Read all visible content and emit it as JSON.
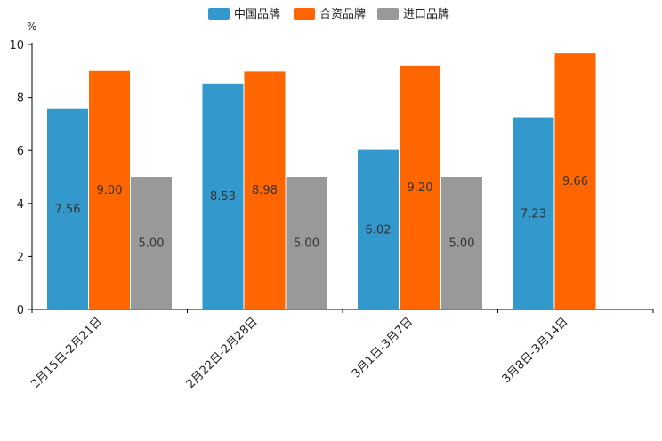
{
  "chart_data": {
    "type": "bar",
    "title": "",
    "unit": "%",
    "xlabel": "",
    "ylabel": "",
    "ylim": [
      0,
      10
    ],
    "yticks": [
      0,
      2,
      4,
      6,
      8,
      10
    ],
    "grid": false,
    "legend_position": "top-center",
    "categories": [
      "2月15日-2月21日",
      "2月22日-2月28日",
      "3月1日-3月7日",
      "3月8日-3月14日"
    ],
    "series": [
      {
        "name": "中国品牌",
        "color": "#3399cc",
        "values": [
          7.56,
          8.53,
          6.02,
          7.23
        ],
        "labels": [
          "7.56",
          "8.53",
          "6.02",
          "7.23"
        ]
      },
      {
        "name": "合资品牌",
        "color": "#ff6600",
        "values": [
          9.0,
          8.98,
          9.2,
          9.66
        ],
        "labels": [
          "9.00",
          "8.98",
          "9.20",
          "9.66"
        ]
      },
      {
        "name": "进口品牌",
        "color": "#999999",
        "values": [
          5.0,
          5.0,
          5.0,
          null
        ],
        "labels": [
          "5.00",
          "5.00",
          "5.00",
          null
        ]
      }
    ]
  }
}
